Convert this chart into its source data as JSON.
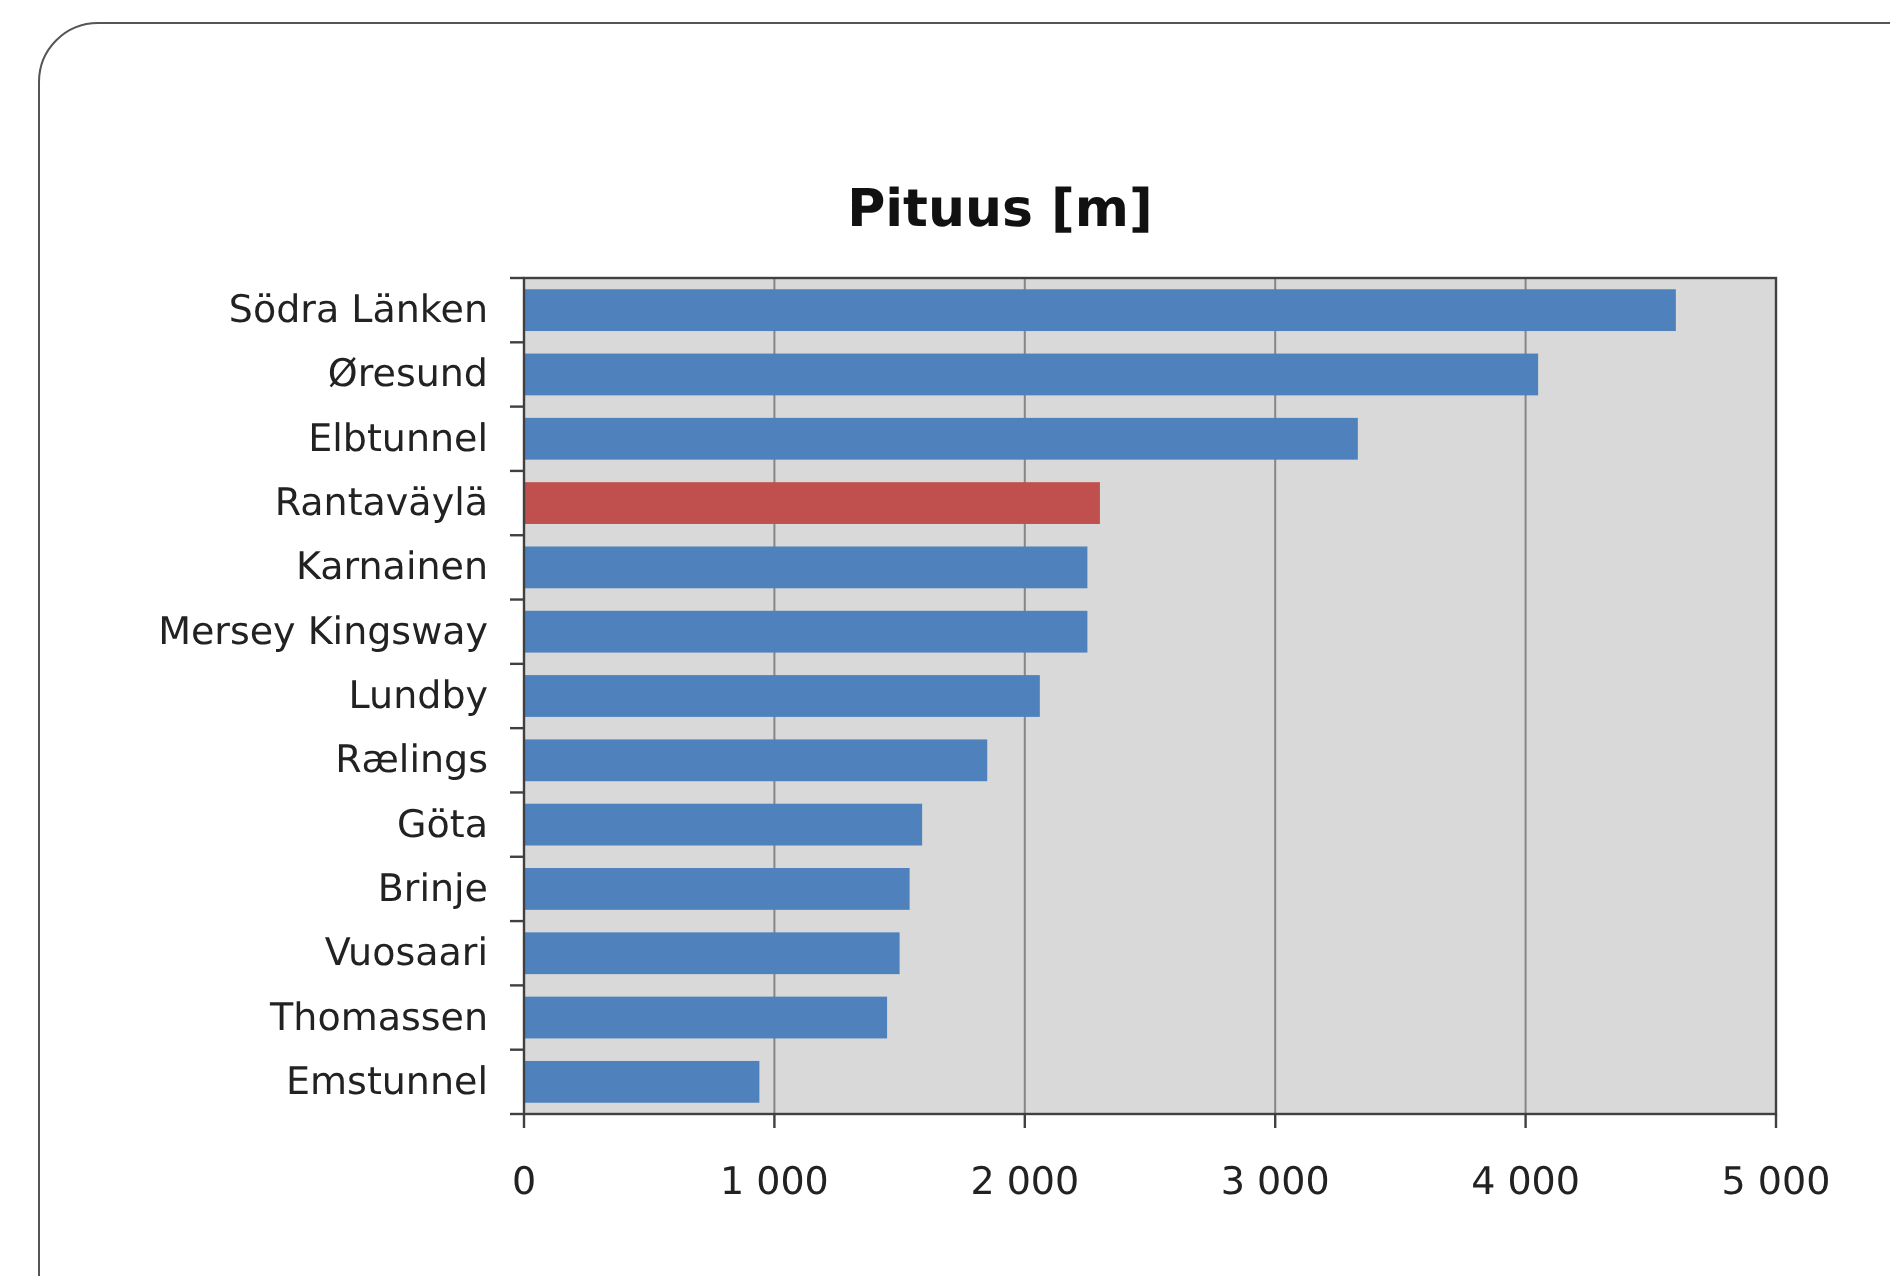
{
  "chart_data": {
    "type": "bar",
    "orientation": "horizontal",
    "title": "Pituus [m]",
    "categories": [
      "Södra Länken",
      "Øresund",
      "Elbtunnel",
      "Rantaväylä",
      "Karnainen",
      "Mersey Kingsway",
      "Lundby",
      "Rælings",
      "Göta",
      "Brinje",
      "Vuosaari",
      "Thomassen",
      "Emstunnel"
    ],
    "values": [
      4600,
      4050,
      3330,
      2300,
      2250,
      2250,
      2060,
      1850,
      1590,
      1540,
      1500,
      1450,
      940
    ],
    "colors": [
      "#4f81bd",
      "#4f81bd",
      "#4f81bd",
      "#c0504d",
      "#4f81bd",
      "#4f81bd",
      "#4f81bd",
      "#4f81bd",
      "#4f81bd",
      "#4f81bd",
      "#4f81bd",
      "#4f81bd",
      "#4f81bd"
    ],
    "xlim": [
      0,
      5000
    ],
    "xticks": [
      0,
      {
        "value": 1000,
        "label": "1 000"
      },
      {
        "value": 2000,
        "label": "2 000"
      },
      {
        "value": 3000,
        "label": "3 000"
      },
      {
        "value": 4000,
        "label": "4 000"
      },
      {
        "value": 5000,
        "label": "5 000"
      }
    ],
    "grid": "x"
  }
}
